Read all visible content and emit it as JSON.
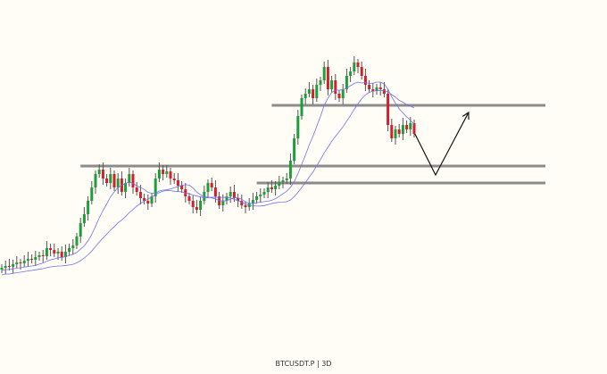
{
  "symbol_label": "BTCUSDT.P | 3D",
  "chart_data": {
    "type": "candlestick",
    "title": "",
    "xlabel": "",
    "ylabel": "",
    "grid": false,
    "ylim": [
      0,
      400
    ],
    "closes": [
      100,
      102,
      101,
      104,
      106,
      105,
      108,
      110,
      109,
      112,
      114,
      113,
      122,
      120,
      116,
      118,
      112,
      118,
      122,
      125,
      135,
      150,
      160,
      175,
      190,
      205,
      210,
      200,
      195,
      205,
      190,
      200,
      185,
      195,
      205,
      190,
      185,
      178,
      175,
      172,
      180,
      200,
      210,
      205,
      208,
      200,
      198,
      192,
      188,
      180,
      175,
      168,
      165,
      175,
      185,
      195,
      190,
      180,
      170,
      175,
      180,
      185,
      178,
      175,
      170,
      168,
      172,
      176,
      180,
      182,
      185,
      190,
      188,
      192,
      196,
      198,
      200,
      220,
      245,
      270,
      290,
      295,
      300,
      290,
      305,
      310,
      325,
      300,
      310,
      295,
      290,
      300,
      315,
      320,
      330,
      325,
      315,
      305,
      300,
      298,
      302,
      300,
      295,
      260,
      245,
      255,
      250,
      260,
      255,
      262,
      250
    ],
    "moving_averages": [
      {
        "period": 10
      },
      {
        "period": 20
      }
    ],
    "horizontal_levels": [
      {
        "price": 214,
        "from_index": 21
      },
      {
        "price": 195,
        "from_index": 68
      },
      {
        "price": 282,
        "from_index": 72
      }
    ],
    "projection_path": [
      [
        110.2,
        250
      ],
      [
        115.7,
        204
      ],
      [
        124.5,
        274
      ]
    ],
    "colors": {
      "up": "#1e9e3a",
      "down": "#d21f2b",
      "wick": "#555555",
      "ma": "#6f73e6",
      "level": "#8c8c8c",
      "projection": "#111111",
      "background": "#fffdf5"
    }
  }
}
